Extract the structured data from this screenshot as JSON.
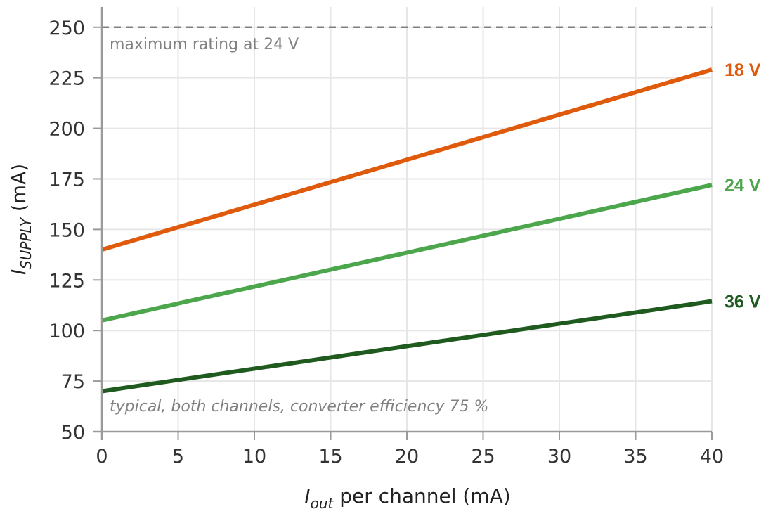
{
  "chart_data": {
    "type": "line",
    "xlabel": {
      "main": "I",
      "sub": "out",
      "rest": " per channel (mA)"
    },
    "ylabel": {
      "main": "I",
      "sub": "SUPPLY",
      "rest": " (mA)"
    },
    "xlim": [
      0,
      40
    ],
    "ylim": [
      50,
      260
    ],
    "xticks": [
      0,
      5,
      10,
      15,
      20,
      25,
      30,
      35,
      40
    ],
    "yticks": [
      50,
      75,
      100,
      125,
      150,
      175,
      200,
      225,
      250
    ],
    "grid": true,
    "series": [
      {
        "name": "18 V",
        "color": "#e05a0c",
        "x": [
          0,
          40
        ],
        "y": [
          140,
          229
        ]
      },
      {
        "name": "24 V",
        "color": "#4ca64c",
        "x": [
          0,
          40
        ],
        "y": [
          105,
          172
        ]
      },
      {
        "name": "36 V",
        "color": "#1f5a1f",
        "x": [
          0,
          40
        ],
        "y": [
          70,
          114.5
        ]
      }
    ],
    "reference_line": {
      "y": 250,
      "label": "maximum rating at 24 V",
      "color": "#808080"
    },
    "note": "typical, both channels, converter efficiency 75 %"
  }
}
